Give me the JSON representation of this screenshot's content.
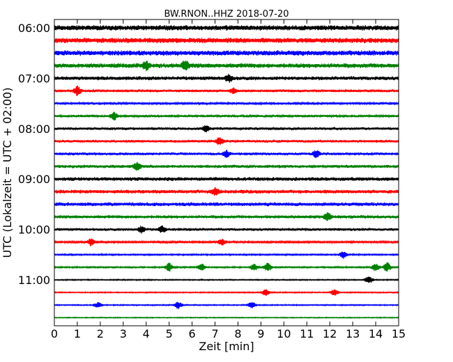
{
  "chart_data": {
    "type": "line",
    "title": "BW.RNON..HHZ 2018-07-20",
    "xlabel": "Zeit  [min]",
    "ylabel": "UTC (Lokalzeit = UTC + 02:00)",
    "xlim": [
      0,
      15
    ],
    "x_ticks": [
      "0",
      "1",
      "2",
      "3",
      "4",
      "5",
      "6",
      "7",
      "8",
      "9",
      "10",
      "11",
      "12",
      "13",
      "14",
      "15"
    ],
    "y_ticks": [
      "06:00",
      "07:00",
      "08:00",
      "09:00",
      "10:00",
      "11:00"
    ],
    "trace_colors": [
      "#000000",
      "#ff0000",
      "#0000ff",
      "#008000"
    ],
    "grid": false,
    "series": [
      {
        "start": "06:00",
        "amplitude": 0.55
      },
      {
        "start": "06:15",
        "amplitude": 0.55
      },
      {
        "start": "06:30",
        "amplitude": 0.55
      },
      {
        "start": "06:45",
        "amplitude": 0.5,
        "events": [
          [
            4.0,
            1.0
          ],
          [
            5.7,
            1.1
          ]
        ]
      },
      {
        "start": "07:00",
        "amplitude": 0.4,
        "events": [
          [
            7.6,
            0.8
          ]
        ]
      },
      {
        "start": "07:15",
        "amplitude": 0.3,
        "events": [
          [
            1.0,
            1.0
          ],
          [
            7.8,
            0.6
          ]
        ]
      },
      {
        "start": "07:30",
        "amplitude": 0.25
      },
      {
        "start": "07:45",
        "amplitude": 0.25,
        "events": [
          [
            2.6,
            0.9
          ]
        ]
      },
      {
        "start": "08:00",
        "amplitude": 0.3,
        "events": [
          [
            6.6,
            0.7
          ]
        ]
      },
      {
        "start": "08:15",
        "amplitude": 0.3,
        "events": [
          [
            7.2,
            0.9
          ]
        ]
      },
      {
        "start": "08:30",
        "amplitude": 0.3,
        "events": [
          [
            7.5,
            0.7
          ],
          [
            11.4,
            0.8
          ]
        ]
      },
      {
        "start": "08:45",
        "amplitude": 0.35,
        "events": [
          [
            3.6,
            0.9
          ]
        ]
      },
      {
        "start": "09:00",
        "amplitude": 0.4
      },
      {
        "start": "09:15",
        "amplitude": 0.4,
        "events": [
          [
            7.0,
            0.9
          ]
        ]
      },
      {
        "start": "09:30",
        "amplitude": 0.4
      },
      {
        "start": "09:45",
        "amplitude": 0.35,
        "events": [
          [
            11.9,
            0.9
          ]
        ]
      },
      {
        "start": "10:00",
        "amplitude": 0.3,
        "events": [
          [
            3.8,
            0.7
          ],
          [
            4.7,
            0.7
          ]
        ]
      },
      {
        "start": "10:15",
        "amplitude": 0.2,
        "events": [
          [
            1.6,
            0.8
          ],
          [
            7.3,
            0.7
          ]
        ]
      },
      {
        "start": "10:30",
        "amplitude": 0.15,
        "events": [
          [
            12.6,
            0.8
          ]
        ]
      },
      {
        "start": "10:45",
        "amplitude": 0.15,
        "events": [
          [
            5.0,
            0.9
          ],
          [
            6.4,
            0.8
          ],
          [
            8.7,
            0.8
          ],
          [
            9.3,
            0.9
          ],
          [
            14.0,
            0.9
          ],
          [
            14.5,
            1.0
          ]
        ]
      },
      {
        "start": "11:00",
        "amplitude": 0.12,
        "events": [
          [
            13.7,
            0.9
          ]
        ]
      },
      {
        "start": "11:15",
        "amplitude": 0.12,
        "events": [
          [
            9.2,
            0.7
          ],
          [
            12.2,
            0.7
          ]
        ]
      },
      {
        "start": "11:30",
        "amplitude": 0.12,
        "events": [
          [
            1.9,
            0.6
          ],
          [
            5.4,
            0.8
          ],
          [
            8.6,
            0.7
          ]
        ]
      },
      {
        "start": "11:45",
        "amplitude": 0.1
      }
    ]
  }
}
